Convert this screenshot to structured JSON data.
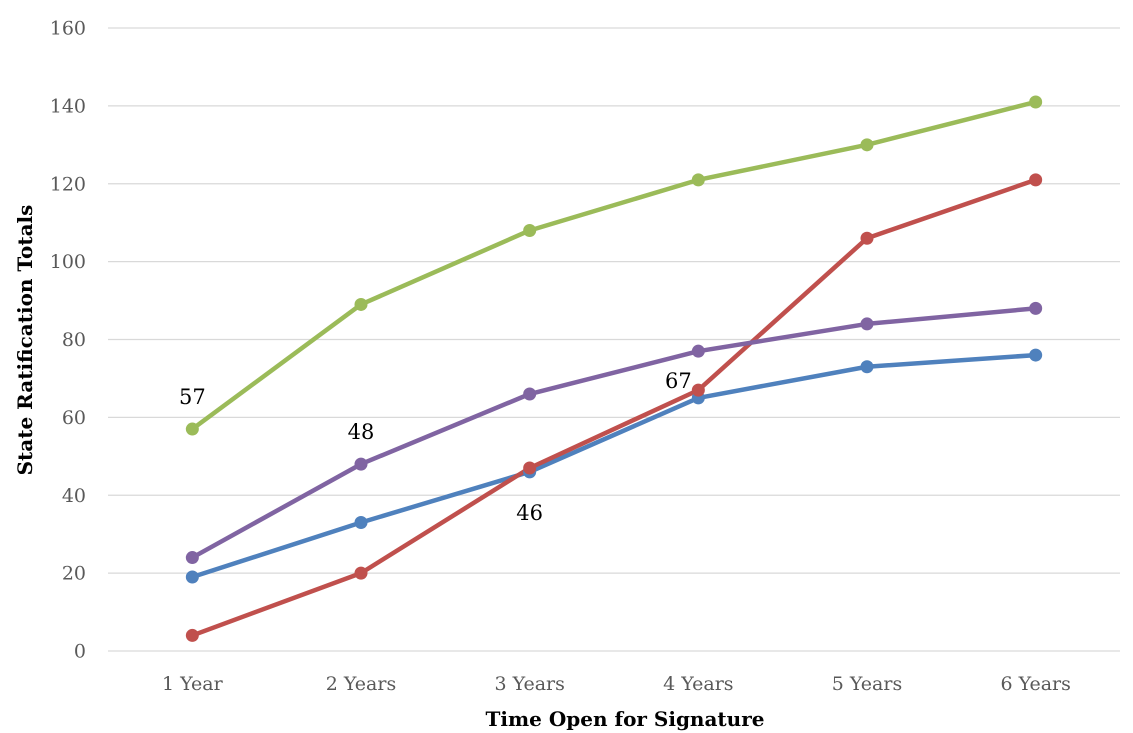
{
  "chart_data": {
    "type": "line",
    "title": "",
    "xlabel": "Time Open for Signature",
    "ylabel": "State Ratification Totals",
    "categories": [
      "1 Year",
      "2 Years",
      "3 Years",
      "4 Years",
      "5 Years",
      "6 Years"
    ],
    "ylim": [
      0,
      160
    ],
    "yticks": [
      0,
      20,
      40,
      60,
      80,
      100,
      120,
      140,
      160
    ],
    "grid": true,
    "legend": "none",
    "series": [
      {
        "color": "#4f81bd",
        "values": [
          19,
          33,
          46,
          65,
          73,
          76
        ]
      },
      {
        "color": "#c0504d",
        "values": [
          4,
          20,
          47,
          67,
          106,
          121
        ]
      },
      {
        "color": "#9bbb59",
        "values": [
          57,
          89,
          108,
          121,
          130,
          141
        ]
      },
      {
        "color": "#8064a2",
        "values": [
          24,
          48,
          66,
          77,
          84,
          88
        ]
      }
    ],
    "annotations": [
      {
        "text": "57",
        "series": 2,
        "index": 0,
        "placement": "above"
      },
      {
        "text": "48",
        "series": 3,
        "index": 1,
        "placement": "above"
      },
      {
        "text": "46",
        "series": 0,
        "index": 2,
        "placement": "below"
      },
      {
        "text": "67",
        "series": 1,
        "index": 3,
        "placement": "above-left"
      }
    ]
  }
}
